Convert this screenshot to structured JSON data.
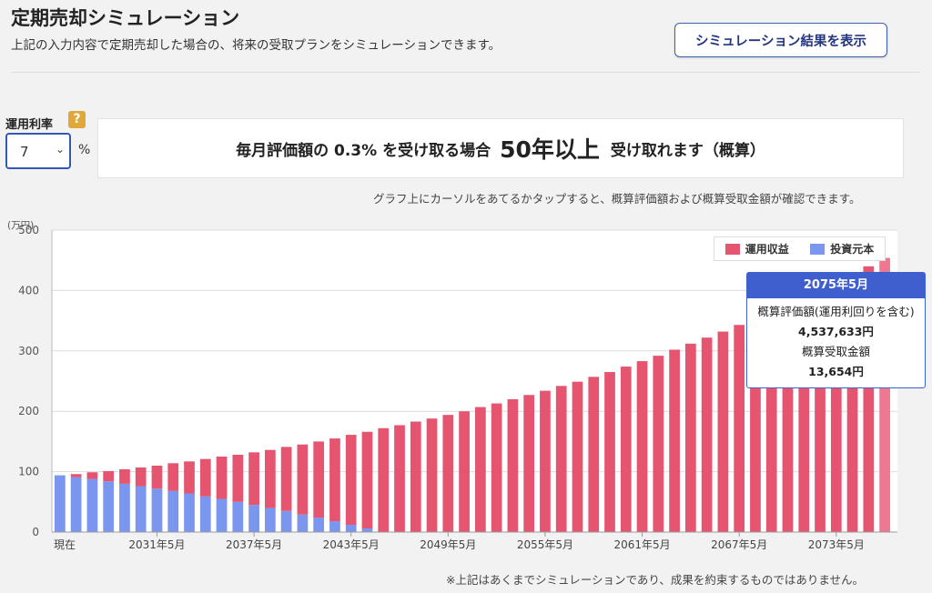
{
  "page": {
    "title": "定期売却シミュレーション",
    "description": "上記の入力内容で定期売却した場合の、将来の受取プランをシミュレーションできます。",
    "show_button": "シミュレーション結果を表示"
  },
  "controls": {
    "rate_label": "運用利率",
    "help_icon": "?",
    "rate_value": "7",
    "percent": "%"
  },
  "summary": {
    "part1": "毎月評価額の 0.3% を受け取る場合",
    "part2": "50年以上",
    "part3": "受け取れます（概算）"
  },
  "hint": "グラフ上にカーソルをあてるかタップすると、概算評価額および概算受取金額が確認できます。",
  "footnote": "※上記はあくまでシミュレーションであり、成果を約束するものではありません。",
  "legend": {
    "gain": "運用収益",
    "principal": "投資元本"
  },
  "colors": {
    "gain": "#e5556f",
    "principal": "#7b96ee",
    "highlight": "#ef7891",
    "accent": "#3f5fcf"
  },
  "tooltip": {
    "date": "2075年5月",
    "label1": "概算評価額(運用利回りを含む)",
    "value1": "4,537,633円",
    "label2": "概算受取金額",
    "value2": "13,654円"
  },
  "chart_data": {
    "type": "bar",
    "stacked": true,
    "unit": "(万円)",
    "ylim": [
      0,
      500
    ],
    "yticks": [
      "0",
      "100",
      "200",
      "300",
      "400",
      "500"
    ],
    "xtick_labels": [
      "現在",
      "2031年5月",
      "2037年5月",
      "2043年5月",
      "2049年5月",
      "2055年5月",
      "2061年5月",
      "2067年5月",
      "2073年5月"
    ],
    "grid": true,
    "legend_position": "top-right",
    "series": [
      {
        "name": "投資元本",
        "values": [
          94,
          91,
          88,
          84,
          80,
          76,
          72,
          68,
          64,
          59,
          55,
          50,
          45,
          40,
          35,
          29,
          24,
          18,
          12,
          6,
          0,
          0,
          0,
          0,
          0,
          0,
          0,
          0,
          0,
          0,
          0,
          0,
          0,
          0,
          0,
          0,
          0,
          0,
          0,
          0,
          0,
          0,
          0,
          0,
          0,
          0,
          0,
          0,
          0,
          0,
          0,
          0
        ]
      },
      {
        "name": "運用収益",
        "values": [
          0,
          5,
          11,
          17,
          24,
          31,
          38,
          46,
          53,
          62,
          70,
          78,
          87,
          96,
          106,
          116,
          126,
          137,
          149,
          160,
          172,
          177,
          183,
          188,
          194,
          200,
          207,
          213,
          220,
          227,
          234,
          242,
          249,
          257,
          265,
          274,
          283,
          292,
          302,
          312,
          322,
          332,
          343,
          354,
          366,
          378,
          390,
          403,
          416,
          430,
          440,
          454
        ]
      }
    ],
    "highlight_index": 51
  }
}
